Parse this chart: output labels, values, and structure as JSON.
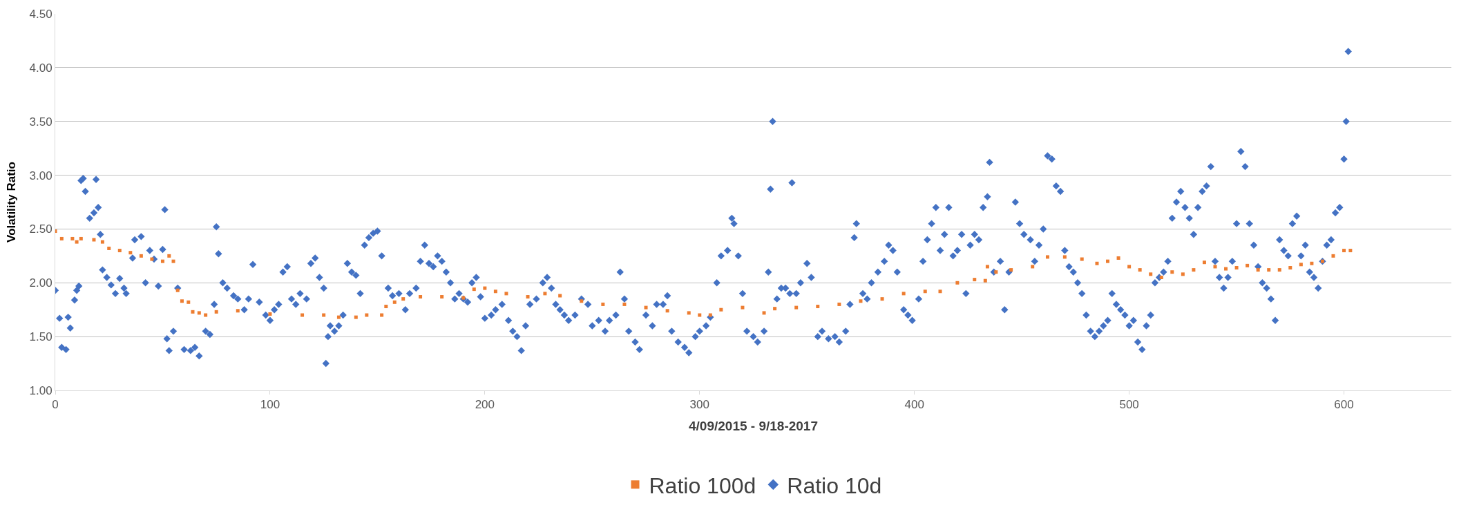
{
  "chart_data": {
    "type": "scatter",
    "xlabel": "4/09/2015 - 9/18-2017",
    "ylabel": "Volatility Ratio",
    "xlim": [
      0,
      650
    ],
    "xticks": [
      0,
      100,
      200,
      300,
      400,
      500,
      600
    ],
    "ylim": [
      1,
      4.5
    ],
    "yticks": [
      {
        "value": 1,
        "label": "1.00"
      },
      {
        "value": 1.5,
        "label": "1.50"
      },
      {
        "value": 2,
        "label": "2.00"
      },
      {
        "value": 2.5,
        "label": "2.50"
      },
      {
        "value": 3,
        "label": "3.00"
      },
      {
        "value": 3.5,
        "label": "3.50"
      },
      {
        "value": 4,
        "label": "4.00"
      },
      {
        "value": 4.5,
        "label": "4.50"
      }
    ],
    "grid": "y",
    "legend": "bottom",
    "series": [
      {
        "name": "Ratio 100d",
        "color": "#ed7d31",
        "marker": "square",
        "x": [
          0,
          3,
          8,
          10,
          12,
          18,
          22,
          25,
          30,
          35,
          40,
          45,
          50,
          53,
          55,
          57,
          59,
          62,
          64,
          67,
          70,
          75,
          85,
          100,
          115,
          125,
          132,
          140,
          145,
          152,
          154,
          158,
          162,
          170,
          180,
          190,
          195,
          200,
          205,
          210,
          220,
          228,
          235,
          245,
          255,
          265,
          275,
          285,
          295,
          300,
          305,
          310,
          320,
          330,
          335,
          345,
          355,
          365,
          375,
          385,
          395,
          405,
          412,
          420,
          428,
          433,
          434,
          438,
          445,
          455,
          462,
          470,
          478,
          485,
          490,
          495,
          500,
          505,
          510,
          515,
          520,
          525,
          530,
          535,
          540,
          545,
          550,
          555,
          560,
          565,
          570,
          575,
          580,
          585,
          590,
          595,
          600,
          603
        ],
        "values": [
          2.48,
          2.41,
          2.41,
          2.38,
          2.41,
          2.4,
          2.38,
          2.32,
          2.3,
          2.28,
          2.25,
          2.22,
          2.2,
          2.25,
          2.2,
          1.93,
          1.83,
          1.82,
          1.73,
          1.72,
          1.7,
          1.73,
          1.74,
          1.71,
          1.7,
          1.7,
          1.68,
          1.68,
          1.7,
          1.7,
          1.78,
          1.82,
          1.85,
          1.87,
          1.87,
          1.86,
          1.94,
          1.95,
          1.92,
          1.9,
          1.87,
          1.9,
          1.88,
          1.83,
          1.8,
          1.8,
          1.77,
          1.74,
          1.72,
          1.7,
          1.7,
          1.75,
          1.77,
          1.72,
          1.76,
          1.77,
          1.78,
          1.8,
          1.83,
          1.85,
          1.9,
          1.92,
          1.92,
          2.0,
          2.03,
          2.02,
          2.15,
          2.1,
          2.12,
          2.15,
          2.24,
          2.24,
          2.22,
          2.18,
          2.2,
          2.23,
          2.15,
          2.12,
          2.08,
          2.05,
          2.1,
          2.08,
          2.12,
          2.19,
          2.15,
          2.13,
          2.14,
          2.16,
          2.12,
          2.12,
          2.12,
          2.14,
          2.17,
          2.18,
          2.2,
          2.25,
          2.3,
          2.3
        ]
      },
      {
        "name": "Ratio 10d",
        "color": "#4472c4",
        "marker": "diamond",
        "x": [
          0,
          2,
          3,
          5,
          6,
          7,
          9,
          10,
          11,
          12,
          13,
          14,
          16,
          18,
          19,
          20,
          21,
          22,
          24,
          26,
          28,
          30,
          32,
          33,
          36,
          37,
          40,
          42,
          44,
          46,
          48,
          50,
          51,
          52,
          53,
          55,
          57,
          60,
          63,
          65,
          67,
          70,
          72,
          74,
          75,
          76,
          78,
          80,
          83,
          85,
          88,
          90,
          92,
          95,
          98,
          100,
          102,
          104,
          106,
          108,
          110,
          112,
          114,
          117,
          119,
          121,
          123,
          125,
          126,
          127,
          128,
          130,
          132,
          134,
          136,
          138,
          140,
          142,
          144,
          146,
          148,
          150,
          152,
          155,
          157,
          160,
          163,
          165,
          168,
          170,
          172,
          174,
          176,
          178,
          180,
          182,
          184,
          186,
          188,
          190,
          192,
          194,
          196,
          198,
          200,
          203,
          205,
          208,
          211,
          213,
          215,
          217,
          219,
          221,
          224,
          227,
          229,
          231,
          233,
          235,
          237,
          239,
          242,
          245,
          248,
          250,
          253,
          256,
          258,
          261,
          263,
          265,
          267,
          270,
          272,
          275,
          278,
          280,
          283,
          285,
          287,
          290,
          293,
          295,
          298,
          300,
          303,
          305,
          308,
          310,
          313,
          315,
          316,
          318,
          320,
          322,
          325,
          327,
          330,
          332,
          333,
          334,
          336,
          338,
          340,
          342,
          343,
          345,
          347,
          350,
          352,
          355,
          357,
          360,
          363,
          365,
          368,
          370,
          372,
          373,
          376,
          378,
          380,
          383,
          386,
          388,
          390,
          392,
          395,
          397,
          399,
          402,
          404,
          406,
          408,
          410,
          412,
          414,
          416,
          418,
          420,
          422,
          424,
          426,
          428,
          430,
          432,
          434,
          435,
          437,
          440,
          442,
          444,
          447,
          449,
          451,
          454,
          456,
          458,
          460,
          462,
          464,
          466,
          468,
          470,
          472,
          474,
          476,
          478,
          480,
          482,
          484,
          486,
          488,
          490,
          492,
          494,
          496,
          498,
          500,
          502,
          504,
          506,
          508,
          510,
          512,
          514,
          516,
          518,
          520,
          522,
          524,
          526,
          528,
          530,
          532,
          534,
          536,
          538,
          540,
          542,
          544,
          546,
          548,
          550,
          552,
          554,
          556,
          558,
          560,
          562,
          564,
          566,
          568,
          570,
          572,
          574,
          576,
          578,
          580,
          582,
          584,
          586,
          588,
          590,
          592,
          594,
          596,
          598,
          600,
          601,
          602
        ],
        "values": [
          1.93,
          1.67,
          1.4,
          1.38,
          1.68,
          1.58,
          1.84,
          1.93,
          1.97,
          2.95,
          2.97,
          2.85,
          2.6,
          2.65,
          2.96,
          2.7,
          2.45,
          2.12,
          2.05,
          1.98,
          1.9,
          2.04,
          1.95,
          1.9,
          2.23,
          2.4,
          2.43,
          2.0,
          2.3,
          2.22,
          1.97,
          2.31,
          2.68,
          1.48,
          1.37,
          1.55,
          1.95,
          1.38,
          1.37,
          1.4,
          1.32,
          1.55,
          1.52,
          1.8,
          2.52,
          2.27,
          2.0,
          1.95,
          1.88,
          1.85,
          1.75,
          1.85,
          2.17,
          1.82,
          1.7,
          1.65,
          1.75,
          1.8,
          2.1,
          2.15,
          1.85,
          1.8,
          1.9,
          1.85,
          2.18,
          2.23,
          2.05,
          1.95,
          1.25,
          1.5,
          1.6,
          1.55,
          1.6,
          1.7,
          2.18,
          2.1,
          2.07,
          1.9,
          2.35,
          2.42,
          2.46,
          2.48,
          2.25,
          1.95,
          1.88,
          1.9,
          1.75,
          1.9,
          1.95,
          2.2,
          2.35,
          2.18,
          2.15,
          2.25,
          2.2,
          2.1,
          2.0,
          1.85,
          1.9,
          1.85,
          1.82,
          2.0,
          2.05,
          1.87,
          1.67,
          1.7,
          1.75,
          1.8,
          1.65,
          1.55,
          1.5,
          1.37,
          1.6,
          1.8,
          1.85,
          2.0,
          2.05,
          1.95,
          1.8,
          1.75,
          1.7,
          1.65,
          1.7,
          1.85,
          1.8,
          1.6,
          1.65,
          1.55,
          1.65,
          1.7,
          2.1,
          1.85,
          1.55,
          1.45,
          1.38,
          1.7,
          1.6,
          1.8,
          1.8,
          1.88,
          1.55,
          1.45,
          1.4,
          1.35,
          1.5,
          1.55,
          1.6,
          1.68,
          2.0,
          2.25,
          2.3,
          2.6,
          2.55,
          2.25,
          1.9,
          1.55,
          1.5,
          1.45,
          1.55,
          2.1,
          2.87,
          3.5,
          1.85,
          1.95,
          1.95,
          1.9,
          2.93,
          1.9,
          2.0,
          2.18,
          2.05,
          1.5,
          1.55,
          1.48,
          1.5,
          1.45,
          1.55,
          1.8,
          2.42,
          2.55,
          1.9,
          1.85,
          2.0,
          2.1,
          2.2,
          2.35,
          2.3,
          2.1,
          1.75,
          1.7,
          1.65,
          1.85,
          2.2,
          2.4,
          2.55,
          2.7,
          2.3,
          2.45,
          2.7,
          2.25,
          2.3,
          2.45,
          1.9,
          2.35,
          2.45,
          2.4,
          2.7,
          2.8,
          3.12,
          2.1,
          2.2,
          1.75,
          2.1,
          2.75,
          2.55,
          2.45,
          2.4,
          2.2,
          2.35,
          2.5,
          3.18,
          3.15,
          2.9,
          2.85,
          2.3,
          2.15,
          2.1,
          2.0,
          1.9,
          1.7,
          1.55,
          1.5,
          1.55,
          1.6,
          1.65,
          1.9,
          1.8,
          1.75,
          1.7,
          1.6,
          1.65,
          1.45,
          1.38,
          1.6,
          1.7,
          2.0,
          2.05,
          2.1,
          2.2,
          2.6,
          2.75,
          2.85,
          2.7,
          2.6,
          2.45,
          2.7,
          2.85,
          2.9,
          3.08,
          2.2,
          2.05,
          1.95,
          2.05,
          2.2,
          2.55,
          3.22,
          3.08,
          2.55,
          2.35,
          2.15,
          2.0,
          1.95,
          1.85,
          1.65,
          2.4,
          2.3,
          2.25,
          2.55,
          2.62,
          2.25,
          2.35,
          2.1,
          2.05,
          1.95,
          2.2,
          2.35,
          2.4,
          2.65,
          2.7,
          3.15,
          3.5,
          4.15
        ]
      }
    ]
  }
}
